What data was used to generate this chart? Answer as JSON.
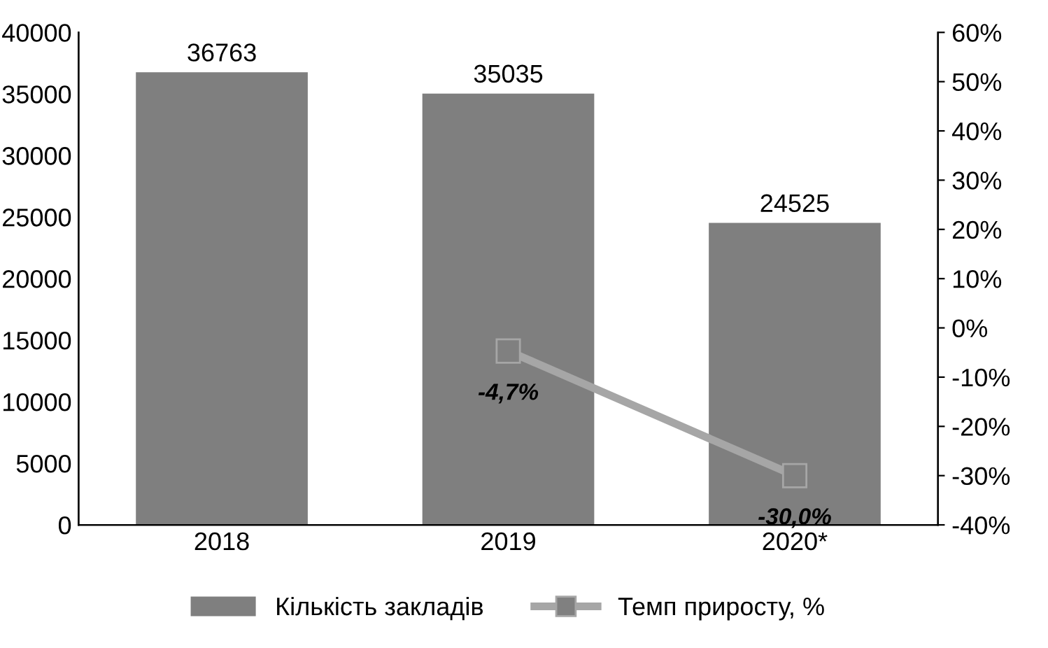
{
  "chart_data": {
    "type": "bar",
    "categories": [
      "2018",
      "2019",
      "2020*"
    ],
    "series": [
      {
        "name": "Кількість закладів",
        "color": "#7f7f7f",
        "values": [
          36763,
          35035,
          24525
        ],
        "value_labels": [
          "36763",
          "35035",
          "24525"
        ]
      },
      {
        "name": "Темп приросту, %",
        "type": "line",
        "axis": "y2",
        "color": "#a6a6a6",
        "values": [
          null,
          -4.7,
          -30.0
        ],
        "value_labels": [
          null,
          "-4,7%",
          "-30,0%"
        ]
      }
    ],
    "ylim": [
      0,
      40000
    ],
    "yticks": [
      0,
      5000,
      10000,
      15000,
      20000,
      25000,
      30000,
      35000,
      40000
    ],
    "y2lim": [
      -40,
      60
    ],
    "y2ticks": [
      {
        "value": -40,
        "label": "-40%"
      },
      {
        "value": -30,
        "label": "-30%"
      },
      {
        "value": -20,
        "label": "-20%"
      },
      {
        "value": -10,
        "label": "-10%"
      },
      {
        "value": 0,
        "label": "0%"
      },
      {
        "value": 10,
        "label": "10%"
      },
      {
        "value": 20,
        "label": "20%"
      },
      {
        "value": 30,
        "label": "30%"
      },
      {
        "value": 40,
        "label": "40%"
      },
      {
        "value": 50,
        "label": "50%"
      },
      {
        "value": 60,
        "label": "60%"
      }
    ],
    "marker": "square",
    "grid": false,
    "legend": "bottom"
  }
}
